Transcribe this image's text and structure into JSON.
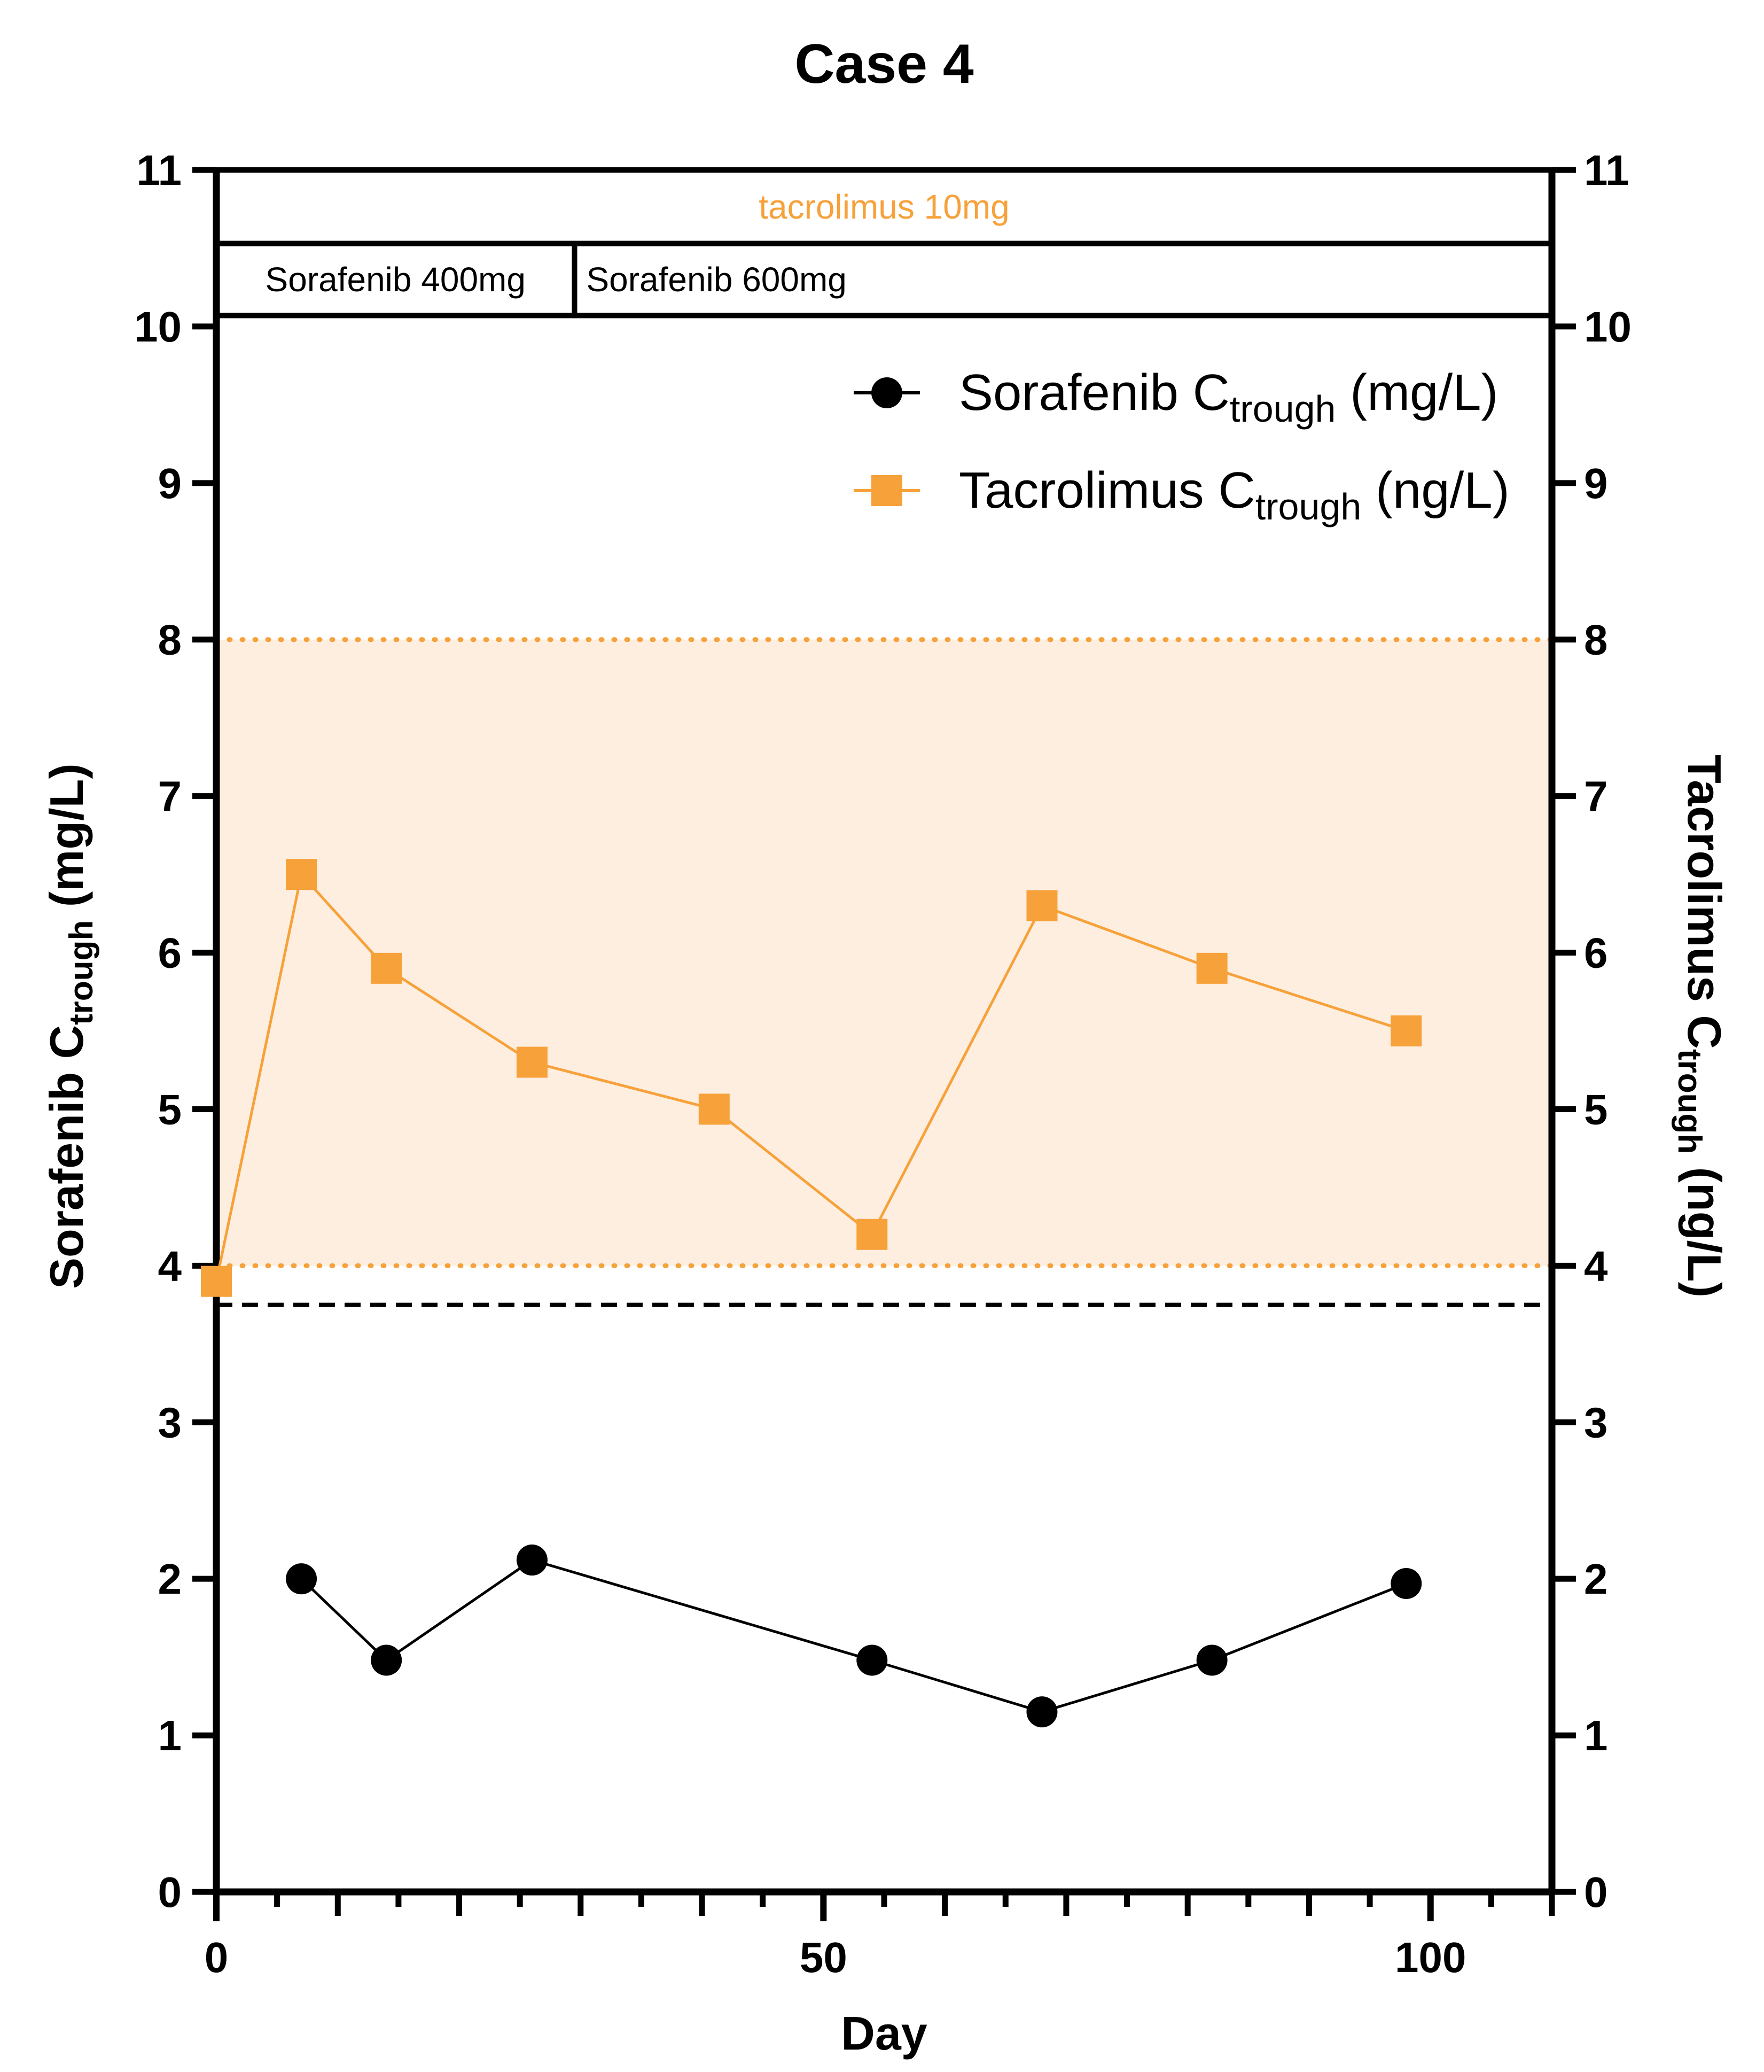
{
  "chart_data": {
    "type": "line",
    "title": "Case 4",
    "xlabel": "Day",
    "ylabel_left": {
      "main": "Sorafenib C",
      "sub": "trough",
      "unit": " (mg/L)"
    },
    "ylabel_right": {
      "main": "Tacrolimus C",
      "sub": "trough",
      "unit": " (ng/L)"
    },
    "xlim": [
      0,
      110
    ],
    "ylim": [
      0,
      11
    ],
    "x_ticks": [
      0,
      50,
      100
    ],
    "y_ticks": [
      0,
      1,
      2,
      3,
      4,
      5,
      6,
      7,
      8,
      9,
      10,
      11
    ],
    "series": [
      {
        "name": "Sorafenib C",
        "name_sub": "trough",
        "name_unit": " (mg/L)",
        "marker": "circle",
        "color": "#000000",
        "x": [
          7,
          14,
          26,
          54,
          68,
          82,
          98
        ],
        "y": [
          2.0,
          1.48,
          2.12,
          1.48,
          1.15,
          1.48,
          1.97
        ]
      },
      {
        "name": "Tacrolimus C",
        "name_sub": "trough",
        "name_unit": " (ng/L)",
        "marker": "square",
        "color": "#f7a13a",
        "x": [
          0,
          7,
          14,
          26,
          41,
          54,
          68,
          82,
          98
        ],
        "y": [
          3.9,
          6.5,
          5.9,
          5.3,
          5.0,
          4.2,
          6.3,
          5.9,
          5.5
        ]
      }
    ],
    "target_range": {
      "low": 4,
      "high": 8,
      "fill": "#fdeee0",
      "line_color": "#f7a13a"
    },
    "reference_line": {
      "y": 3.75,
      "style": "dashed",
      "color": "#000000"
    },
    "dose_bands": {
      "tacrolimus": {
        "label": "tacrolimus 10mg",
        "x_start": 0,
        "x_end": 110,
        "color": "#f7a13a"
      },
      "sorafenib": [
        {
          "label": "Sorafenib 400mg",
          "x_start": 0,
          "x_end": 29.5
        },
        {
          "label": "Sorafenib 600mg",
          "x_start": 29.5,
          "x_end": 110
        }
      ]
    }
  }
}
